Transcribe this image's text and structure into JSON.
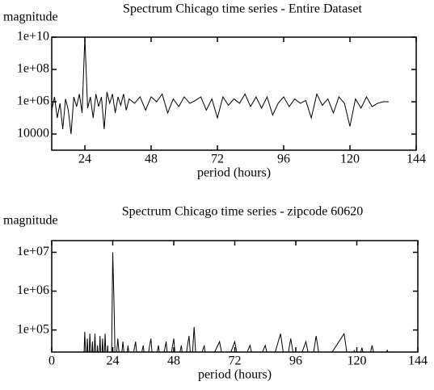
{
  "chart_data": [
    {
      "type": "line",
      "title": "Spectrum Chicago time series - Entire Dataset",
      "ylabel": "magnitude",
      "xlabel": "period (hours)",
      "yscale": "log",
      "grid": false,
      "color": "#000000",
      "xlim": [
        12,
        144
      ],
      "xticks": [
        24,
        48,
        72,
        96,
        120,
        144
      ],
      "ylim": [
        1000,
        10000000000
      ],
      "yticks": [
        {
          "value": 10000000000,
          "label": "1e+10"
        },
        {
          "value": 100000000,
          "label": "1e+08"
        },
        {
          "value": 1000000,
          "label": "1e+06"
        },
        10000
      ],
      "x": [
        12,
        13,
        14,
        15,
        16,
        17,
        18,
        19,
        20,
        21,
        22,
        23,
        24,
        25,
        26,
        27,
        28,
        29,
        30,
        31,
        32,
        33,
        34,
        35,
        36,
        37,
        38,
        39,
        40,
        42,
        44,
        46,
        48,
        50,
        52,
        54,
        56,
        58,
        60,
        62,
        64,
        66,
        68,
        70,
        72,
        74,
        76,
        78,
        80,
        82,
        84,
        86,
        88,
        90,
        92,
        94,
        96,
        98,
        100,
        102,
        104,
        106,
        108,
        110,
        112,
        114,
        116,
        118,
        120,
        122,
        124,
        126,
        128,
        130,
        132,
        134
      ],
      "values": [
        300000,
        2000000,
        100000,
        800000,
        20000,
        1500000,
        300000,
        10000,
        2000000,
        500000,
        3000000,
        200000,
        10000000000,
        400000,
        2000000,
        100000,
        3000000,
        500000,
        2000000,
        20000,
        4000000,
        800000,
        3000000,
        200000,
        2000000,
        600000,
        3000000,
        300000,
        1500000,
        800000,
        2000000,
        300000,
        2000000,
        1000000,
        3000000,
        200000,
        1500000,
        500000,
        2000000,
        800000,
        1200000,
        2000000,
        300000,
        1500000,
        100000,
        2000000,
        600000,
        1500000,
        800000,
        3000000,
        500000,
        2000000,
        400000,
        2000000,
        150000,
        800000,
        2000000,
        500000,
        1500000,
        800000,
        1200000,
        100000,
        3000000,
        600000,
        1500000,
        200000,
        2000000,
        800000,
        30000,
        1500000,
        400000,
        2000000,
        500000,
        800000,
        1000000,
        1000000
      ]
    },
    {
      "type": "line",
      "title": "Spectrum Chicago time series - zipcode 60620",
      "ylabel": "magnitude",
      "xlabel": "period (hours)",
      "yscale": "log",
      "grid": false,
      "color": "#000000",
      "xlim": [
        0,
        144
      ],
      "xticks": [
        0,
        24,
        48,
        72,
        96,
        120,
        144
      ],
      "ylim": [
        27000,
        20000000
      ],
      "yticks": [
        {
          "value": 10000000,
          "label": "1e+07"
        },
        {
          "value": 1000000,
          "label": "1e+06"
        },
        {
          "value": 100000,
          "label": "1e+05"
        }
      ],
      "x": [
        12.5,
        13,
        13.5,
        14,
        14.5,
        15,
        15.5,
        16,
        16.5,
        17,
        17.5,
        18,
        18.5,
        19,
        19.5,
        20,
        20.5,
        21,
        21.5,
        22,
        22.5,
        23.5,
        24,
        24.5,
        25,
        26,
        27,
        28,
        29,
        30,
        31,
        33,
        34,
        36,
        37,
        39,
        40,
        42,
        43,
        45,
        46,
        48,
        49,
        51,
        52,
        54,
        55,
        56,
        57,
        60,
        61,
        66,
        68,
        72,
        74,
        78,
        80,
        84,
        86,
        90,
        92,
        94,
        96,
        100,
        102,
        104,
        106,
        115,
        117,
        119,
        120,
        122,
        124,
        126,
        128,
        132,
        134
      ],
      "values": [
        10000,
        90000,
        10000,
        60000,
        10000,
        80000,
        10000,
        50000,
        10000,
        80000,
        10000,
        40000,
        10000,
        70000,
        10000,
        60000,
        10000,
        80000,
        10000,
        40000,
        10000,
        10000,
        10000000,
        500000,
        10000,
        60000,
        10000,
        50000,
        10000,
        40000,
        10000,
        50000,
        10000,
        40000,
        10000,
        60000,
        10000,
        40000,
        10000,
        50000,
        10000,
        60000,
        10000,
        40000,
        10000,
        70000,
        10000,
        120000,
        10000,
        40000,
        10000,
        50000,
        10000,
        50000,
        10000,
        40000,
        10000,
        40000,
        10000,
        80000,
        10000,
        60000,
        10000,
        50000,
        10000,
        70000,
        10000,
        80000,
        10000,
        30000,
        10000,
        35000,
        10000,
        40000,
        10000,
        30000,
        10000
      ]
    }
  ]
}
